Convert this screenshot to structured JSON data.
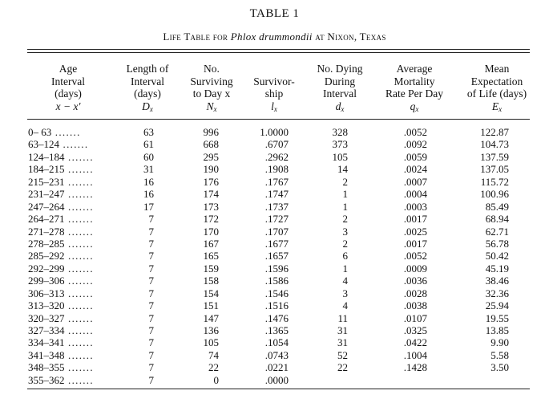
{
  "table_label": "TABLE 1",
  "caption": {
    "prefix": "Life Table for",
    "species": "Phlox drummondii",
    "suffix": "at Nixon, Texas"
  },
  "headers": {
    "age": [
      "Age",
      "Interval",
      "(days)",
      "x − x′"
    ],
    "length": [
      "Length of",
      "Interval",
      "(days)",
      "D",
      "x"
    ],
    "surviving": [
      "No.",
      "Surviving",
      "to Day x",
      "N",
      "x"
    ],
    "survivorship": [
      "Survivor-",
      "ship",
      "l",
      "x"
    ],
    "dying": [
      "No. Dying",
      "During",
      "Interval",
      "d",
      "x"
    ],
    "mortality": [
      "Average",
      "Mortality",
      "Rate Per Day",
      "q",
      "x"
    ],
    "expectation": [
      "Mean",
      "Expectation",
      "of Life (days)",
      "E",
      "x"
    ]
  },
  "rows": [
    {
      "age": "0– 63",
      "length": "63",
      "surviving": "996",
      "survivorship": "1.0000",
      "dying": "328",
      "mortality": ".0052",
      "expectation": "122.87"
    },
    {
      "age": "63–124",
      "length": "61",
      "surviving": "668",
      "survivorship": ".6707",
      "dying": "373",
      "mortality": ".0092",
      "expectation": "104.73"
    },
    {
      "age": "124–184",
      "length": "60",
      "surviving": "295",
      "survivorship": ".2962",
      "dying": "105",
      "mortality": ".0059",
      "expectation": "137.59"
    },
    {
      "age": "184–215",
      "length": "31",
      "surviving": "190",
      "survivorship": ".1908",
      "dying": "14",
      "mortality": ".0024",
      "expectation": "137.05"
    },
    {
      "age": "215–231",
      "length": "16",
      "surviving": "176",
      "survivorship": ".1767",
      "dying": "2",
      "mortality": ".0007",
      "expectation": "115.72"
    },
    {
      "age": "231–247",
      "length": "16",
      "surviving": "174",
      "survivorship": ".1747",
      "dying": "1",
      "mortality": ".0004",
      "expectation": "100.96"
    },
    {
      "age": "247–264",
      "length": "17",
      "surviving": "173",
      "survivorship": ".1737",
      "dying": "1",
      "mortality": ".0003",
      "expectation": "85.49"
    },
    {
      "age": "264–271",
      "length": "7",
      "surviving": "172",
      "survivorship": ".1727",
      "dying": "2",
      "mortality": ".0017",
      "expectation": "68.94"
    },
    {
      "age": "271–278",
      "length": "7",
      "surviving": "170",
      "survivorship": ".1707",
      "dying": "3",
      "mortality": ".0025",
      "expectation": "62.71"
    },
    {
      "age": "278–285",
      "length": "7",
      "surviving": "167",
      "survivorship": ".1677",
      "dying": "2",
      "mortality": ".0017",
      "expectation": "56.78"
    },
    {
      "age": "285–292",
      "length": "7",
      "surviving": "165",
      "survivorship": ".1657",
      "dying": "6",
      "mortality": ".0052",
      "expectation": "50.42"
    },
    {
      "age": "292–299",
      "length": "7",
      "surviving": "159",
      "survivorship": ".1596",
      "dying": "1",
      "mortality": ".0009",
      "expectation": "45.19"
    },
    {
      "age": "299–306",
      "length": "7",
      "surviving": "158",
      "survivorship": ".1586",
      "dying": "4",
      "mortality": ".0036",
      "expectation": "38.46"
    },
    {
      "age": "306–313",
      "length": "7",
      "surviving": "154",
      "survivorship": ".1546",
      "dying": "3",
      "mortality": ".0028",
      "expectation": "32.36"
    },
    {
      "age": "313–320",
      "length": "7",
      "surviving": "151",
      "survivorship": ".1516",
      "dying": "4",
      "mortality": ".0038",
      "expectation": "25.94"
    },
    {
      "age": "320–327",
      "length": "7",
      "surviving": "147",
      "survivorship": ".1476",
      "dying": "11",
      "mortality": ".0107",
      "expectation": "19.55"
    },
    {
      "age": "327–334",
      "length": "7",
      "surviving": "136",
      "survivorship": ".1365",
      "dying": "31",
      "mortality": ".0325",
      "expectation": "13.85"
    },
    {
      "age": "334–341",
      "length": "7",
      "surviving": "105",
      "survivorship": ".1054",
      "dying": "31",
      "mortality": ".0422",
      "expectation": "9.90"
    },
    {
      "age": "341–348",
      "length": "7",
      "surviving": "74",
      "survivorship": ".0743",
      "dying": "52",
      "mortality": ".1004",
      "expectation": "5.58"
    },
    {
      "age": "348–355",
      "length": "7",
      "surviving": "22",
      "survivorship": ".0221",
      "dying": "22",
      "mortality": ".1428",
      "expectation": "3.50"
    },
    {
      "age": "355–362",
      "length": "7",
      "surviving": "0",
      "survivorship": ".0000",
      "dying": "",
      "mortality": "",
      "expectation": ""
    }
  ]
}
